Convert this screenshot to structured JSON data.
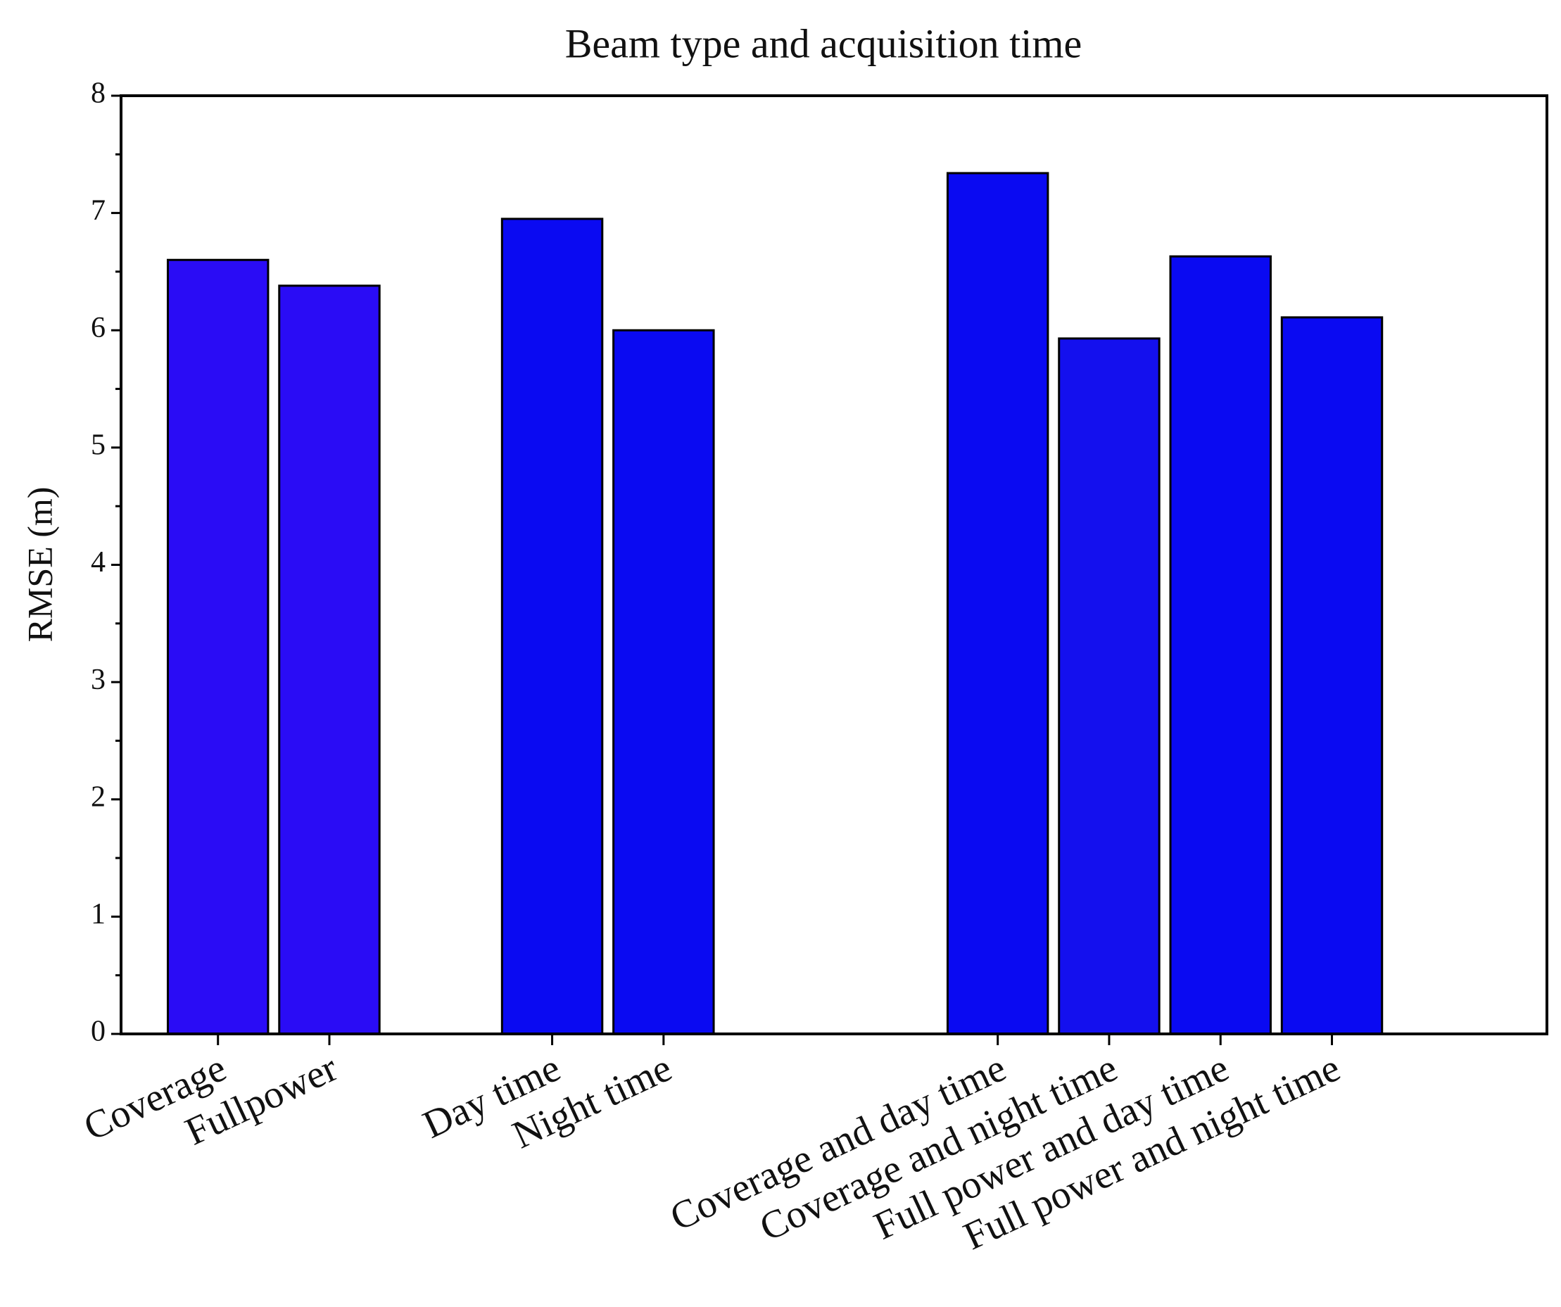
{
  "chart_data": {
    "type": "bar",
    "title": "Beam type and acquisition time",
    "y_label": "RMSE (m)",
    "categories": [
      "Coverage",
      "Fullpower",
      null,
      "Day time",
      "Night time",
      null,
      null,
      "Coverage and day time",
      "Coverage and night time",
      "Full power and day time",
      "Full power and night time"
    ],
    "values": [
      6.6,
      6.38,
      null,
      6.95,
      6.0,
      null,
      null,
      7.34,
      5.93,
      6.63,
      6.11
    ],
    "colors": [
      "#2a0cf5",
      "#2a0cf5",
      null,
      "#0a0af2",
      "#0a0af2",
      null,
      null,
      "#0a0af2",
      "#1410ee",
      "#0a0af2",
      "#0a0af2"
    ],
    "ylim": [
      0,
      8
    ],
    "yticks": [
      0,
      1,
      2,
      3,
      4,
      5,
      6,
      7,
      8
    ]
  }
}
